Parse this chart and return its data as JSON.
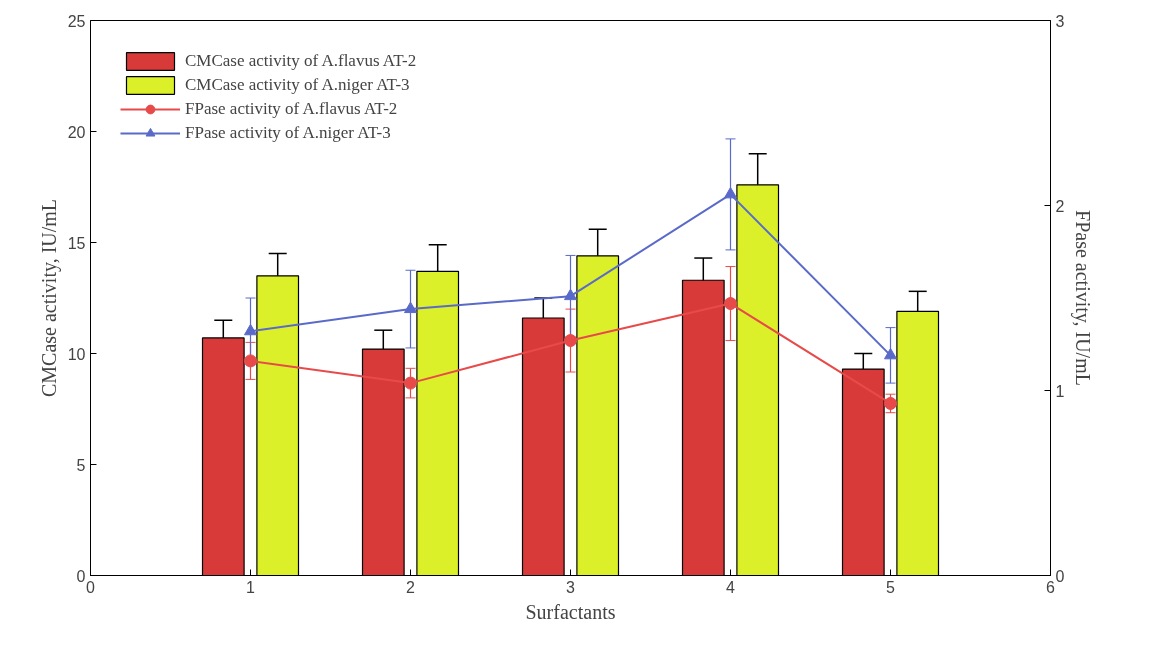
{
  "chart_data": {
    "type": "bar",
    "xlabel": "Surfactants",
    "ylabel": "CMCase activity, IU/mL",
    "y2label": "FPase activity, IU/mL",
    "x": [
      1,
      2,
      3,
      4,
      5
    ],
    "xlim": [
      0,
      6
    ],
    "xticks": [
      0,
      1,
      2,
      3,
      4,
      5,
      6
    ],
    "ylim": [
      0,
      25
    ],
    "yticks": [
      0,
      5,
      10,
      15,
      20,
      25
    ],
    "y2lim": [
      0,
      3
    ],
    "y2ticks": [
      0,
      1,
      2,
      3
    ],
    "grid": false,
    "legend": "top left",
    "series": [
      {
        "name": "CMCase activity of A.flavus AT-2",
        "color": "#d83a3a",
        "values": [
          10.7,
          10.2,
          11.6,
          13.3,
          9.3
        ],
        "errors": [
          0.8,
          0.85,
          0.9,
          1.0,
          0.7
        ]
      },
      {
        "name": "CMCase activity of A.niger AT-3",
        "color": "#dcf02a",
        "values": [
          13.5,
          13.7,
          14.4,
          17.6,
          11.9
        ],
        "errors": [
          1.0,
          1.2,
          1.2,
          1.4,
          0.9
        ]
      },
      {
        "name": "FPase activity of A.flavus AT-2",
        "type": "line",
        "axis": "y2",
        "marker": "circle",
        "color": "#e84a4a",
        "values": [
          1.16,
          1.04,
          1.27,
          1.47,
          0.93
        ],
        "errors": [
          0.1,
          0.08,
          0.17,
          0.2,
          0.05
        ]
      },
      {
        "name": "FPase activity of A.niger AT-3",
        "type": "line",
        "axis": "y2",
        "marker": "triangle",
        "color": "#5a6ac8",
        "values": [
          1.32,
          1.44,
          1.51,
          2.06,
          1.19
        ],
        "errors": [
          0.18,
          0.21,
          0.22,
          0.3,
          0.15
        ]
      }
    ]
  }
}
